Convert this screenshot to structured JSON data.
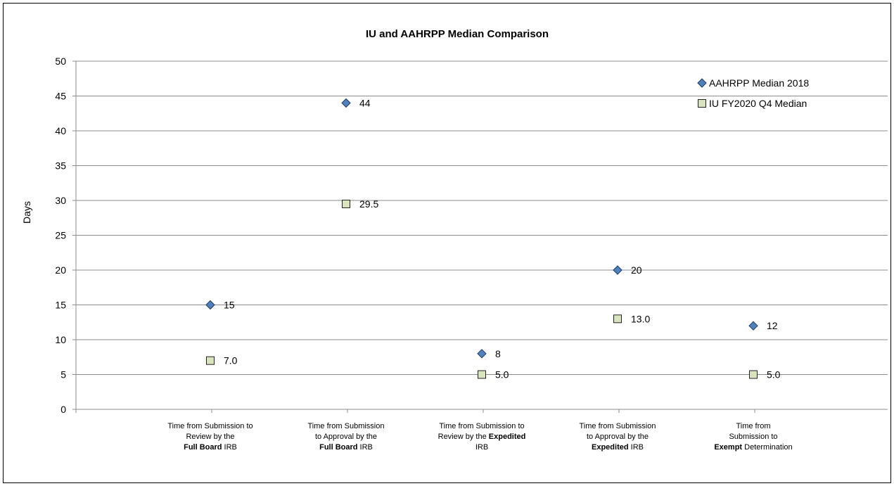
{
  "chart_data": {
    "type": "scatter",
    "title": "IU and AAHRPP Median Comparison",
    "xlabel": "",
    "ylabel": "Days",
    "ylim": [
      0,
      50
    ],
    "yticks": [
      0,
      5,
      10,
      15,
      20,
      25,
      30,
      35,
      40,
      45,
      50
    ],
    "grid": "horizontal",
    "legend_position": "top-right",
    "categories": [
      [
        {
          "t": "Time from Submission to"
        },
        {
          "t": "Review by the"
        },
        {
          "b": "Full Board",
          "t": " IRB"
        }
      ],
      [
        {
          "t": "Time from Submission"
        },
        {
          "t": "to Approval by the"
        },
        {
          "b": "Full Board",
          "t": " IRB"
        }
      ],
      [
        {
          "t": "Time from Submission to"
        },
        {
          "t": "Review by the ",
          "b": "Expedited"
        },
        {
          "t": "IRB"
        }
      ],
      [
        {
          "t": "Time from Submission"
        },
        {
          "t": "to Approval by the"
        },
        {
          "b": "Expedited",
          "t": " IRB"
        }
      ],
      [
        {
          "t": "Time from"
        },
        {
          "t": "Submission to"
        },
        {
          "b": "Exempt",
          "t": " Determination"
        }
      ]
    ],
    "series": [
      {
        "name": "AAHRPP Median 2018",
        "marker": "diamond",
        "color": "#4F81BD",
        "values": [
          15,
          44,
          8,
          20,
          12
        ],
        "labels": [
          "15",
          "44",
          "8",
          "20",
          "12"
        ]
      },
      {
        "name": "IU FY2020 Q4 Median",
        "marker": "square",
        "color": "#D7E4BD",
        "values": [
          7.0,
          29.5,
          5.0,
          13.0,
          5.0
        ],
        "labels": [
          "7.0",
          "29.5",
          "5.0",
          "13.0",
          "5.0"
        ]
      }
    ]
  }
}
